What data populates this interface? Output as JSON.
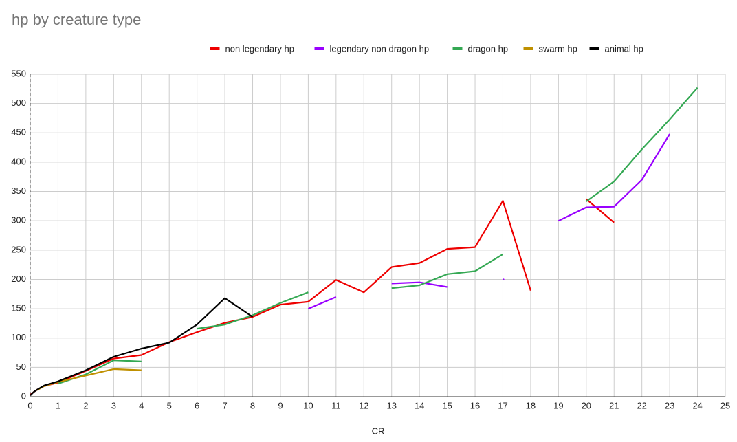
{
  "chart_data": {
    "type": "line",
    "title": "hp by creature type",
    "x_label": "CR",
    "x": [
      0,
      0.125,
      0.25,
      0.5,
      1,
      2,
      3,
      4,
      5,
      6,
      7,
      8,
      9,
      10,
      11,
      12,
      13,
      14,
      15,
      16,
      17,
      18,
      19,
      20,
      21,
      22,
      23,
      24
    ],
    "series": [
      {
        "name": "non legendary hp",
        "color": "#ee0000",
        "values": [
          3,
          8,
          12,
          18,
          24,
          44,
          65,
          71,
          93,
          110,
          126,
          136,
          157,
          162,
          199,
          178,
          221,
          228,
          252,
          255,
          334,
          181,
          null,
          337,
          297,
          null,
          null,
          null
        ]
      },
      {
        "name": "legendary non dragon hp",
        "color": "#9900ff",
        "values": [
          null,
          null,
          null,
          null,
          null,
          null,
          null,
          null,
          null,
          null,
          null,
          null,
          null,
          150,
          170,
          null,
          193,
          195,
          187,
          null,
          200,
          null,
          300,
          323,
          324,
          370,
          448,
          null
        ]
      },
      {
        "name": "dragon hp",
        "color": "#34a853",
        "values": [
          null,
          null,
          null,
          null,
          22,
          38,
          62,
          60,
          null,
          116,
          123,
          139,
          160,
          178,
          null,
          null,
          185,
          190,
          209,
          214,
          243,
          null,
          null,
          333,
          367,
          422,
          473,
          527
        ]
      },
      {
        "name": "swarm hp",
        "color": "#bf9000",
        "values": [
          null,
          null,
          11,
          18,
          25,
          36,
          47,
          45,
          null,
          null,
          null,
          null,
          null,
          null,
          null,
          null,
          null,
          null,
          null,
          null,
          null,
          null,
          null,
          null,
          null,
          null,
          null,
          null
        ]
      },
      {
        "name": "animal hp",
        "color": "#000000",
        "values": [
          2,
          8,
          12,
          19,
          26,
          45,
          68,
          82,
          92,
          123,
          168,
          136,
          null,
          null,
          null,
          null,
          null,
          null,
          null,
          null,
          null,
          null,
          null,
          null,
          null,
          null,
          null,
          null
        ]
      }
    ],
    "xlim": [
      0,
      25
    ],
    "xticks": [
      0,
      1,
      2,
      3,
      4,
      5,
      6,
      7,
      8,
      9,
      10,
      11,
      12,
      13,
      14,
      15,
      16,
      17,
      18,
      19,
      20,
      21,
      22,
      23,
      24,
      25
    ],
    "ylim": [
      0,
      550
    ],
    "yticks": [
      0,
      50,
      100,
      150,
      200,
      250,
      300,
      350,
      400,
      450,
      500,
      550
    ],
    "grid": true,
    "legend": "top"
  }
}
